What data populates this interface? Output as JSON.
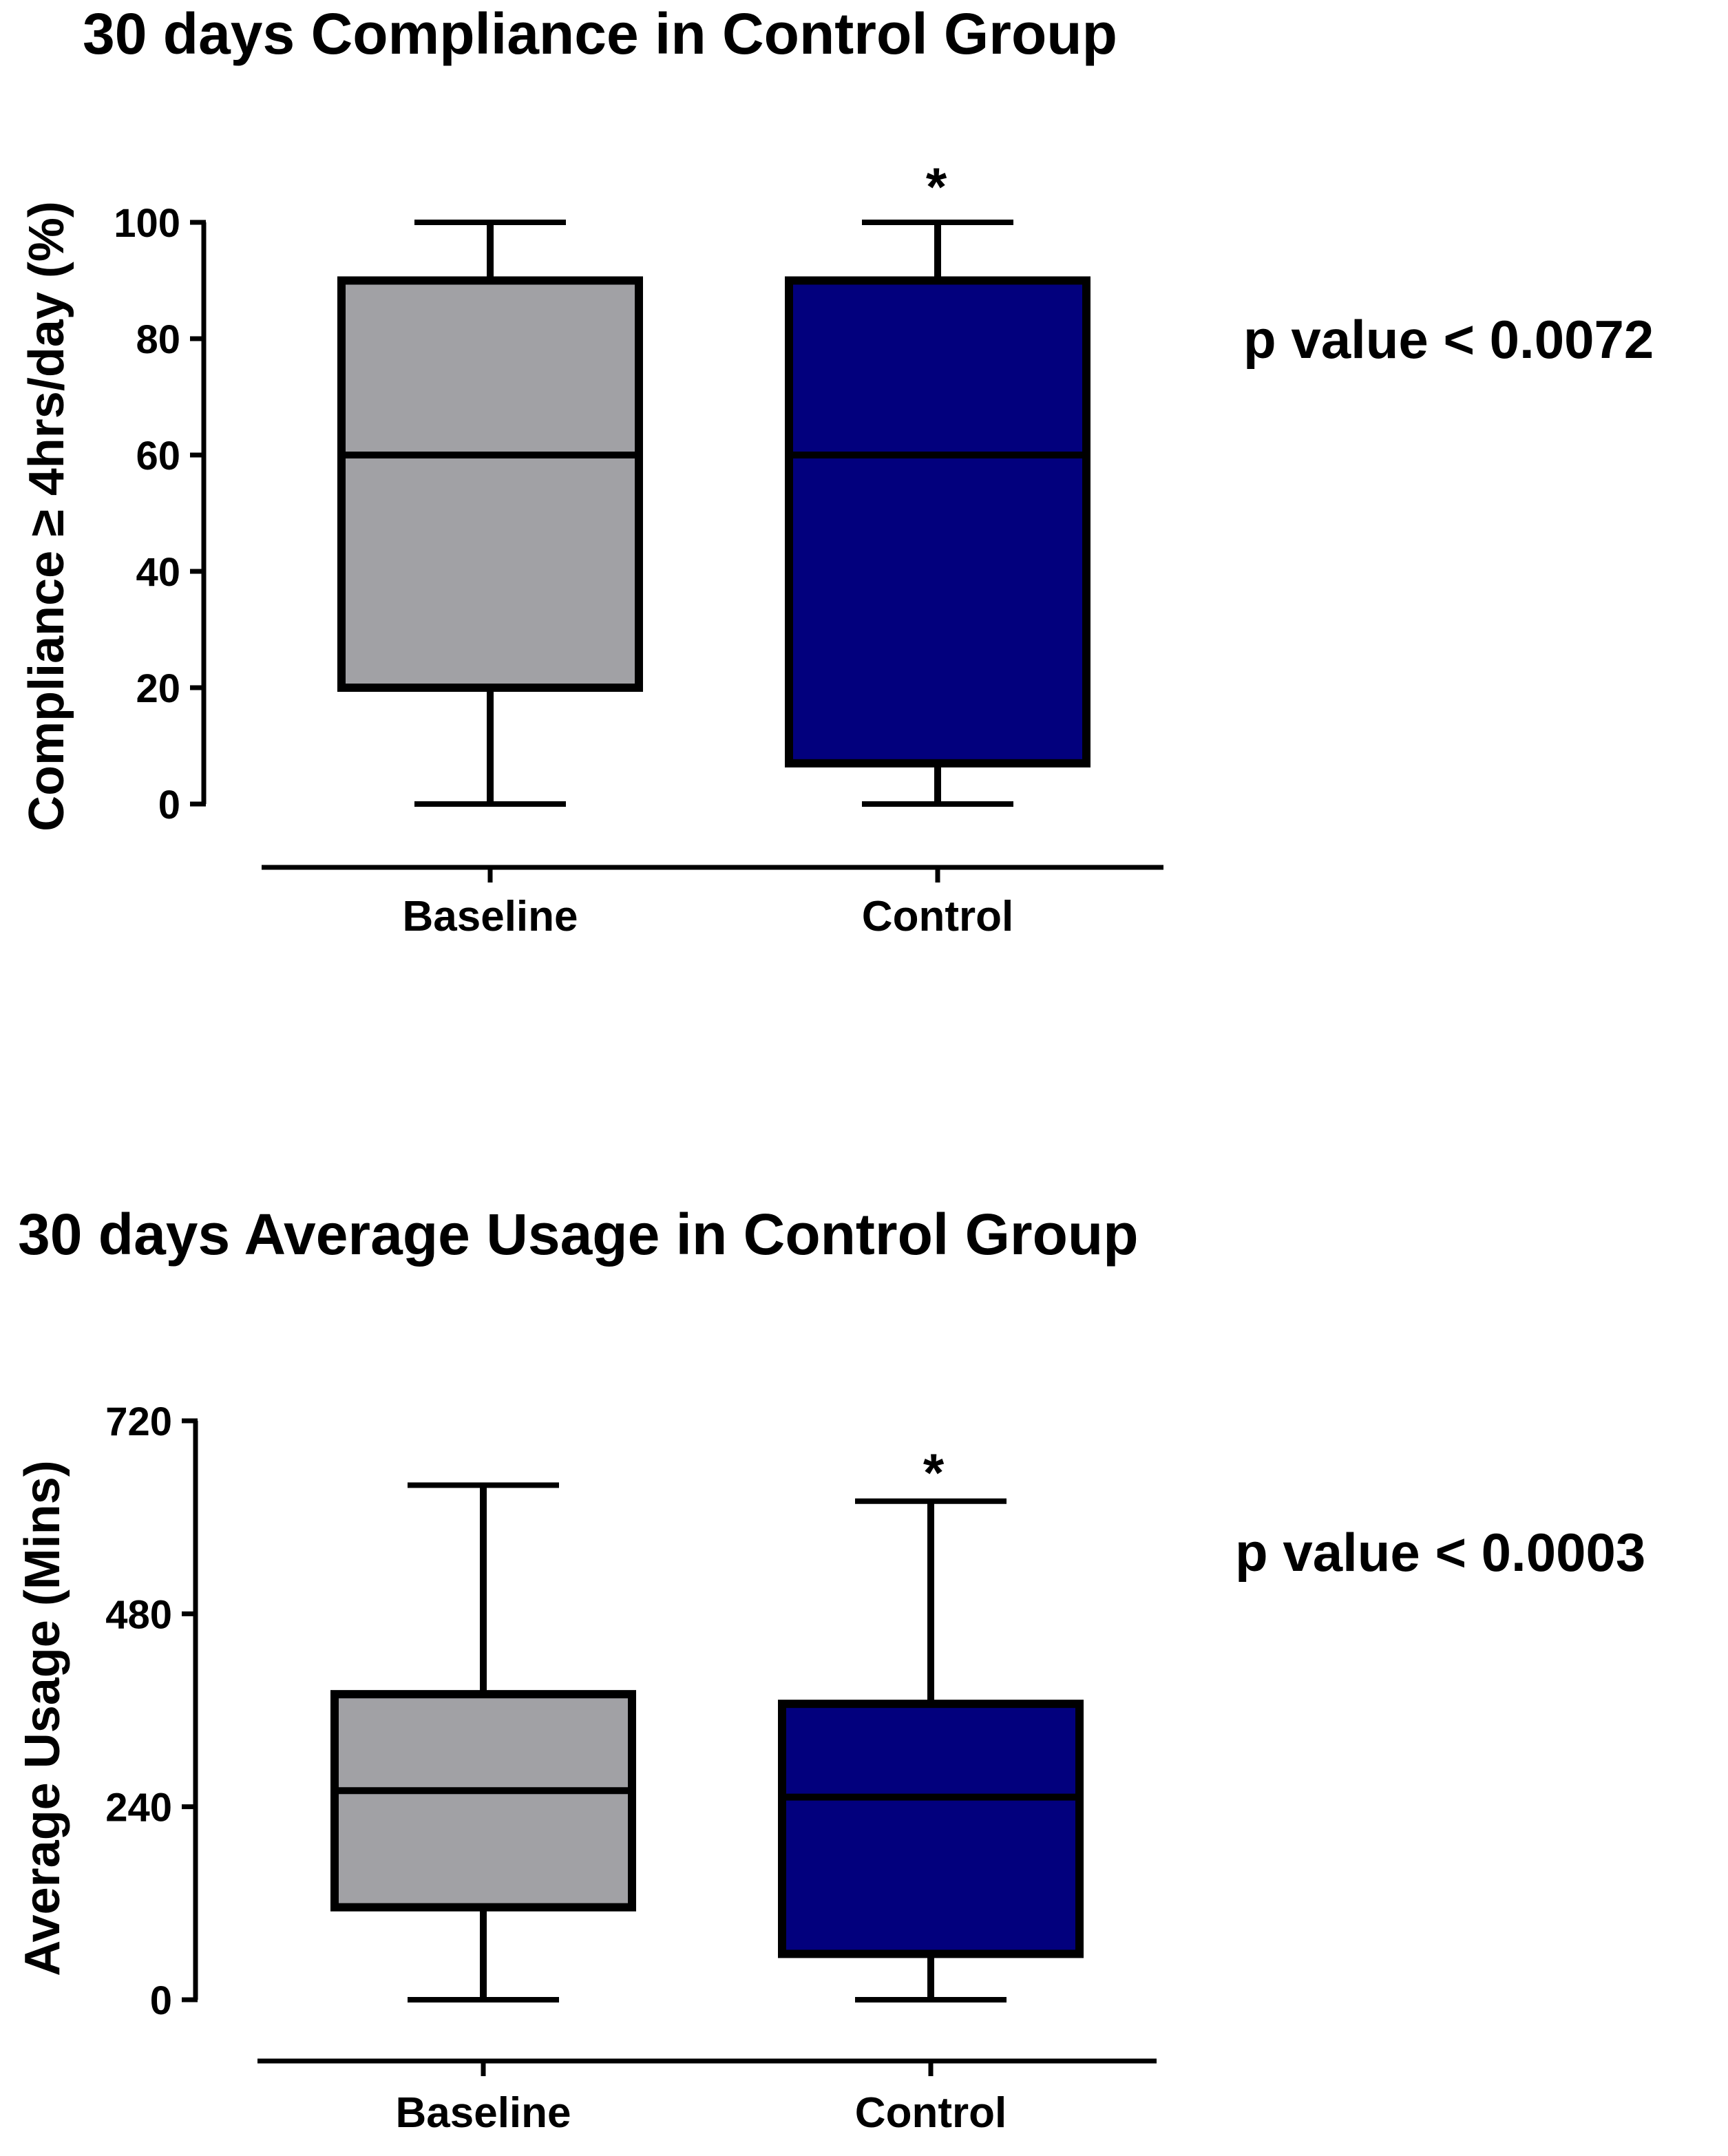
{
  "chart_data": [
    {
      "type": "box",
      "title": "30 days Compliance in Control Group",
      "ylabel": "Compliance ≥ 4hrs/day (%)",
      "xlabel": "",
      "ylim": [
        0,
        100
      ],
      "yticks": [
        "0",
        "20",
        "40",
        "60",
        "80",
        "100"
      ],
      "categories": [
        "Baseline",
        "Control"
      ],
      "boxes": [
        {
          "min": 0,
          "q1": 20,
          "median": 60,
          "q3": 90,
          "max": 100,
          "fill": "#a1a1a5"
        },
        {
          "min": 0,
          "q1": 7,
          "median": 60,
          "q3": 90,
          "max": 100,
          "fill": "#02007d"
        }
      ],
      "annotations": [
        {
          "category": "Control",
          "text": "*"
        }
      ],
      "p_value": "p value < 0.0072"
    },
    {
      "type": "box",
      "title": "30 days Average Usage in Control Group",
      "ylabel": "Average Usage (Mins)",
      "xlabel": "",
      "ylim": [
        0,
        720
      ],
      "yticks": [
        "0",
        "240",
        "480",
        "720"
      ],
      "categories": [
        "Baseline",
        "Control"
      ],
      "boxes": [
        {
          "min": 0,
          "q1": 115,
          "median": 260,
          "q3": 380,
          "max": 640,
          "fill": "#a1a1a5"
        },
        {
          "min": 0,
          "q1": 57,
          "median": 252,
          "q3": 368,
          "max": 620,
          "fill": "#02007d"
        }
      ],
      "annotations": [
        {
          "category": "Control",
          "text": "*"
        }
      ],
      "p_value": "p value < 0.0003"
    }
  ]
}
